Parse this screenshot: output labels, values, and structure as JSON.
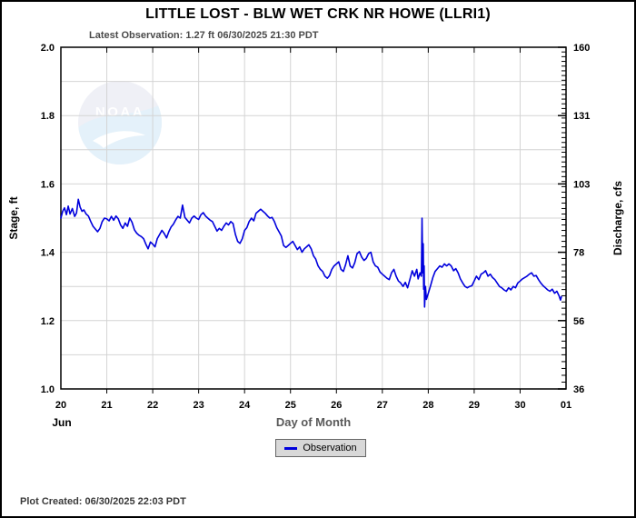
{
  "header": {
    "title": "LITTLE LOST - BLW WET CRK NR HOWE  (LLRI1)",
    "latest_observation": "Latest Observation: 1.27 ft 06/30/2025 21:30 PDT"
  },
  "watermark": {
    "text": "NOAA"
  },
  "legend": {
    "label": "Observation",
    "line_color": "#0000dd"
  },
  "footer": {
    "plot_created": "Plot Created: 06/30/2025 22:03 PDT"
  },
  "colors": {
    "line": "#0000dd",
    "grid": "#d4d4d4",
    "axis": "#000000",
    "xlabel_text": "#595959",
    "watermark_circle": "#e2e4f0",
    "watermark_wave": "#cfe7f6"
  },
  "chart_data": {
    "type": "line",
    "title": "LITTLE LOST - BLW WET CRK NR HOWE  (LLRI1)",
    "xlabel": "Day of Month",
    "x_context_label": "Jun",
    "ylabel_left": "Stage, ft",
    "ylabel_right": "Discharge, cfs",
    "x_domain": [
      20,
      31
    ],
    "ylim_left": [
      1.0,
      2.0
    ],
    "grid": {
      "x_step_days": 1,
      "y_step_ft": 0.1,
      "visible": true
    },
    "legend_position": "bottom-center",
    "x_ticks": [
      {
        "day": 20,
        "label": "20"
      },
      {
        "day": 21,
        "label": "21"
      },
      {
        "day": 22,
        "label": "22"
      },
      {
        "day": 23,
        "label": "23"
      },
      {
        "day": 24,
        "label": "24"
      },
      {
        "day": 25,
        "label": "25"
      },
      {
        "day": 26,
        "label": "26"
      },
      {
        "day": 27,
        "label": "27"
      },
      {
        "day": 28,
        "label": "28"
      },
      {
        "day": 29,
        "label": "29"
      },
      {
        "day": 30,
        "label": "30"
      },
      {
        "day": 31,
        "label": "01"
      }
    ],
    "y_left_ticks": [
      {
        "stage": 2.0,
        "label": "2.0"
      },
      {
        "stage": 1.8,
        "label": "1.8"
      },
      {
        "stage": 1.6,
        "label": "1.6"
      },
      {
        "stage": 1.4,
        "label": "1.4"
      },
      {
        "stage": 1.2,
        "label": "1.2"
      },
      {
        "stage": 1.0,
        "label": "1.0"
      }
    ],
    "y_right_ticks": [
      {
        "stage": 2.0,
        "cfs": 160,
        "label": "160"
      },
      {
        "stage": 1.8,
        "cfs": 131,
        "label": "131"
      },
      {
        "stage": 1.6,
        "cfs": 103,
        "label": "103"
      },
      {
        "stage": 1.4,
        "cfs": 78,
        "label": "78"
      },
      {
        "stage": 1.2,
        "cfs": 56,
        "label": "56"
      },
      {
        "stage": 1.0,
        "cfs": 36,
        "label": "36"
      }
    ],
    "rating_minor_tick_step_cfs": 2,
    "series": [
      {
        "name": "Observation",
        "color": "#0000dd",
        "units": "ft",
        "points": [
          [
            20.0,
            1.5
          ],
          [
            20.04,
            1.52
          ],
          [
            20.08,
            1.53
          ],
          [
            20.12,
            1.51
          ],
          [
            20.16,
            1.535
          ],
          [
            20.2,
            1.512
          ],
          [
            20.25,
            1.528
          ],
          [
            20.3,
            1.505
          ],
          [
            20.34,
            1.515
          ],
          [
            20.38,
            1.555
          ],
          [
            20.42,
            1.532
          ],
          [
            20.46,
            1.52
          ],
          [
            20.5,
            1.524
          ],
          [
            20.55,
            1.512
          ],
          [
            20.6,
            1.506
          ],
          [
            20.65,
            1.49
          ],
          [
            20.7,
            1.476
          ],
          [
            20.75,
            1.468
          ],
          [
            20.8,
            1.46
          ],
          [
            20.85,
            1.47
          ],
          [
            20.9,
            1.49
          ],
          [
            20.95,
            1.5
          ],
          [
            21.0,
            1.498
          ],
          [
            21.05,
            1.492
          ],
          [
            21.1,
            1.505
          ],
          [
            21.15,
            1.494
          ],
          [
            21.2,
            1.506
          ],
          [
            21.25,
            1.498
          ],
          [
            21.3,
            1.48
          ],
          [
            21.35,
            1.47
          ],
          [
            21.4,
            1.486
          ],
          [
            21.45,
            1.476
          ],
          [
            21.5,
            1.5
          ],
          [
            21.55,
            1.488
          ],
          [
            21.6,
            1.466
          ],
          [
            21.65,
            1.456
          ],
          [
            21.7,
            1.45
          ],
          [
            21.75,
            1.446
          ],
          [
            21.8,
            1.44
          ],
          [
            21.85,
            1.424
          ],
          [
            21.9,
            1.41
          ],
          [
            21.95,
            1.43
          ],
          [
            22.0,
            1.424
          ],
          [
            22.05,
            1.416
          ],
          [
            22.1,
            1.44
          ],
          [
            22.15,
            1.452
          ],
          [
            22.2,
            1.464
          ],
          [
            22.25,
            1.455
          ],
          [
            22.3,
            1.442
          ],
          [
            22.35,
            1.46
          ],
          [
            22.4,
            1.474
          ],
          [
            22.45,
            1.482
          ],
          [
            22.5,
            1.495
          ],
          [
            22.55,
            1.505
          ],
          [
            22.6,
            1.5
          ],
          [
            22.65,
            1.538
          ],
          [
            22.7,
            1.502
          ],
          [
            22.75,
            1.494
          ],
          [
            22.8,
            1.486
          ],
          [
            22.85,
            1.5
          ],
          [
            22.9,
            1.506
          ],
          [
            22.95,
            1.5
          ],
          [
            23.0,
            1.496
          ],
          [
            23.05,
            1.51
          ],
          [
            23.1,
            1.516
          ],
          [
            23.15,
            1.506
          ],
          [
            23.2,
            1.5
          ],
          [
            23.25,
            1.494
          ],
          [
            23.3,
            1.49
          ],
          [
            23.35,
            1.476
          ],
          [
            23.4,
            1.462
          ],
          [
            23.45,
            1.47
          ],
          [
            23.5,
            1.464
          ],
          [
            23.55,
            1.476
          ],
          [
            23.6,
            1.486
          ],
          [
            23.65,
            1.48
          ],
          [
            23.7,
            1.49
          ],
          [
            23.75,
            1.484
          ],
          [
            23.8,
            1.452
          ],
          [
            23.85,
            1.432
          ],
          [
            23.9,
            1.426
          ],
          [
            23.95,
            1.44
          ],
          [
            24.0,
            1.464
          ],
          [
            24.05,
            1.472
          ],
          [
            24.1,
            1.49
          ],
          [
            24.15,
            1.5
          ],
          [
            24.2,
            1.492
          ],
          [
            24.25,
            1.514
          ],
          [
            24.3,
            1.52
          ],
          [
            24.35,
            1.526
          ],
          [
            24.4,
            1.52
          ],
          [
            24.45,
            1.514
          ],
          [
            24.5,
            1.506
          ],
          [
            24.55,
            1.5
          ],
          [
            24.6,
            1.502
          ],
          [
            24.65,
            1.49
          ],
          [
            24.7,
            1.472
          ],
          [
            24.75,
            1.46
          ],
          [
            24.8,
            1.448
          ],
          [
            24.85,
            1.42
          ],
          [
            24.9,
            1.414
          ],
          [
            24.95,
            1.42
          ],
          [
            25.0,
            1.426
          ],
          [
            25.05,
            1.432
          ],
          [
            25.1,
            1.42
          ],
          [
            25.15,
            1.408
          ],
          [
            25.2,
            1.416
          ],
          [
            25.25,
            1.4
          ],
          [
            25.3,
            1.41
          ],
          [
            25.35,
            1.416
          ],
          [
            25.4,
            1.422
          ],
          [
            25.45,
            1.41
          ],
          [
            25.5,
            1.39
          ],
          [
            25.55,
            1.38
          ],
          [
            25.6,
            1.36
          ],
          [
            25.65,
            1.35
          ],
          [
            25.7,
            1.344
          ],
          [
            25.75,
            1.33
          ],
          [
            25.8,
            1.324
          ],
          [
            25.85,
            1.332
          ],
          [
            25.9,
            1.35
          ],
          [
            25.95,
            1.36
          ],
          [
            26.0,
            1.366
          ],
          [
            26.05,
            1.372
          ],
          [
            26.1,
            1.35
          ],
          [
            26.15,
            1.344
          ],
          [
            26.2,
            1.364
          ],
          [
            26.25,
            1.39
          ],
          [
            26.3,
            1.36
          ],
          [
            26.35,
            1.354
          ],
          [
            26.4,
            1.37
          ],
          [
            26.45,
            1.396
          ],
          [
            26.5,
            1.402
          ],
          [
            26.55,
            1.386
          ],
          [
            26.6,
            1.376
          ],
          [
            26.65,
            1.382
          ],
          [
            26.7,
            1.396
          ],
          [
            26.75,
            1.4
          ],
          [
            26.8,
            1.372
          ],
          [
            26.85,
            1.36
          ],
          [
            26.9,
            1.356
          ],
          [
            26.95,
            1.342
          ],
          [
            27.0,
            1.336
          ],
          [
            27.05,
            1.33
          ],
          [
            27.1,
            1.324
          ],
          [
            27.15,
            1.32
          ],
          [
            27.2,
            1.34
          ],
          [
            27.25,
            1.35
          ],
          [
            27.3,
            1.33
          ],
          [
            27.35,
            1.316
          ],
          [
            27.4,
            1.31
          ],
          [
            27.45,
            1.3
          ],
          [
            27.5,
            1.312
          ],
          [
            27.55,
            1.296
          ],
          [
            27.6,
            1.32
          ],
          [
            27.65,
            1.346
          ],
          [
            27.7,
            1.33
          ],
          [
            27.75,
            1.35
          ],
          [
            27.78,
            1.322
          ],
          [
            27.82,
            1.34
          ],
          [
            27.85,
            1.33
          ],
          [
            27.865,
            1.5
          ],
          [
            27.88,
            1.34
          ],
          [
            27.89,
            1.425
          ],
          [
            27.9,
            1.292
          ],
          [
            27.91,
            1.36
          ],
          [
            27.92,
            1.24
          ],
          [
            27.94,
            1.3
          ],
          [
            27.96,
            1.262
          ],
          [
            28.0,
            1.28
          ],
          [
            28.05,
            1.302
          ],
          [
            28.1,
            1.326
          ],
          [
            28.15,
            1.344
          ],
          [
            28.2,
            1.352
          ],
          [
            28.25,
            1.36
          ],
          [
            28.3,
            1.356
          ],
          [
            28.35,
            1.366
          ],
          [
            28.4,
            1.36
          ],
          [
            28.45,
            1.366
          ],
          [
            28.5,
            1.36
          ],
          [
            28.55,
            1.346
          ],
          [
            28.6,
            1.352
          ],
          [
            28.65,
            1.34
          ],
          [
            28.7,
            1.322
          ],
          [
            28.75,
            1.31
          ],
          [
            28.8,
            1.3
          ],
          [
            28.85,
            1.296
          ],
          [
            28.9,
            1.3
          ],
          [
            28.95,
            1.302
          ],
          [
            29.0,
            1.316
          ],
          [
            29.05,
            1.33
          ],
          [
            29.1,
            1.32
          ],
          [
            29.15,
            1.336
          ],
          [
            29.2,
            1.34
          ],
          [
            29.25,
            1.346
          ],
          [
            29.3,
            1.33
          ],
          [
            29.35,
            1.336
          ],
          [
            29.4,
            1.326
          ],
          [
            29.45,
            1.32
          ],
          [
            29.5,
            1.31
          ],
          [
            29.55,
            1.3
          ],
          [
            29.6,
            1.296
          ],
          [
            29.65,
            1.29
          ],
          [
            29.7,
            1.286
          ],
          [
            29.75,
            1.296
          ],
          [
            29.8,
            1.29
          ],
          [
            29.85,
            1.3
          ],
          [
            29.9,
            1.296
          ],
          [
            29.95,
            1.31
          ],
          [
            30.0,
            1.316
          ],
          [
            30.05,
            1.322
          ],
          [
            30.1,
            1.326
          ],
          [
            30.15,
            1.33
          ],
          [
            30.2,
            1.336
          ],
          [
            30.25,
            1.34
          ],
          [
            30.3,
            1.33
          ],
          [
            30.35,
            1.332
          ],
          [
            30.4,
            1.32
          ],
          [
            30.45,
            1.31
          ],
          [
            30.5,
            1.302
          ],
          [
            30.55,
            1.296
          ],
          [
            30.6,
            1.29
          ],
          [
            30.65,
            1.286
          ],
          [
            30.7,
            1.292
          ],
          [
            30.75,
            1.28
          ],
          [
            30.8,
            1.286
          ],
          [
            30.85,
            1.272
          ],
          [
            30.88,
            1.26
          ],
          [
            30.9,
            1.27
          ]
        ]
      }
    ]
  }
}
